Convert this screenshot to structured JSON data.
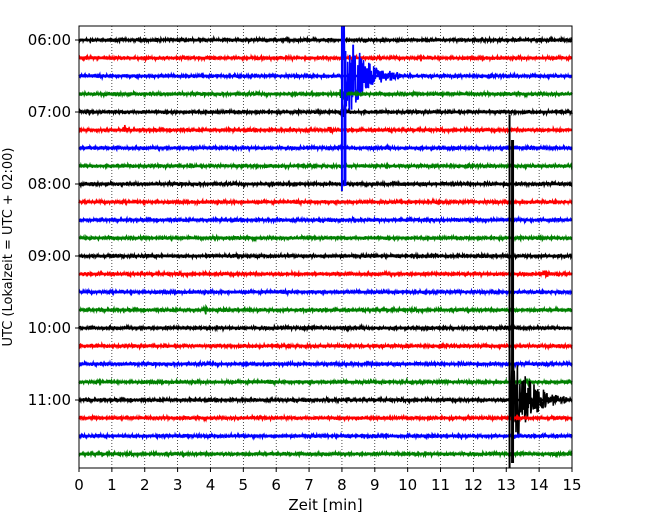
{
  "chart_data": {
    "type": "line",
    "title": "",
    "xlabel": "Zeit  [min]",
    "ylabel": "UTC (Lokalzeit = UTC + 02:00)",
    "xlim": [
      0,
      15
    ],
    "x_ticks": [
      "0",
      "1",
      "2",
      "3",
      "4",
      "5",
      "6",
      "7",
      "8",
      "9",
      "10",
      "11",
      "12",
      "13",
      "14",
      "15"
    ],
    "y_ticks": [
      "06:00",
      "07:00",
      "08:00",
      "09:00",
      "10:00",
      "11:00"
    ],
    "trace_interval_min": 15,
    "traces": [
      {
        "start": "06:00",
        "color": "#000000"
      },
      {
        "start": "06:15",
        "color": "#ff0000"
      },
      {
        "start": "06:30",
        "color": "#0000ff",
        "events": [
          {
            "t": 8.0,
            "amp": "very-large",
            "note": "earthquake"
          }
        ]
      },
      {
        "start": "06:45",
        "color": "#008000",
        "events": [
          {
            "t": 8.0,
            "amp": "medium"
          }
        ]
      },
      {
        "start": "07:00",
        "color": "#000000",
        "events": [
          {
            "t": 8.0,
            "amp": "medium"
          }
        ]
      },
      {
        "start": "07:15",
        "color": "#ff0000",
        "events": [
          {
            "t": 1.4,
            "amp": "small"
          },
          {
            "t": 7.6,
            "amp": "small"
          }
        ]
      },
      {
        "start": "07:30",
        "color": "#0000ff"
      },
      {
        "start": "07:45",
        "color": "#008000"
      },
      {
        "start": "08:00",
        "color": "#000000"
      },
      {
        "start": "08:15",
        "color": "#ff0000"
      },
      {
        "start": "08:30",
        "color": "#0000ff"
      },
      {
        "start": "08:45",
        "color": "#008000"
      },
      {
        "start": "09:00",
        "color": "#000000"
      },
      {
        "start": "09:15",
        "color": "#ff0000",
        "events": [
          {
            "t": 14.2,
            "amp": "small"
          }
        ]
      },
      {
        "start": "09:30",
        "color": "#0000ff"
      },
      {
        "start": "09:45",
        "color": "#008000",
        "events": [
          {
            "t": 3.85,
            "amp": "small"
          }
        ]
      },
      {
        "start": "10:00",
        "color": "#000000"
      },
      {
        "start": "10:15",
        "color": "#ff0000"
      },
      {
        "start": "10:30",
        "color": "#0000ff"
      },
      {
        "start": "10:45",
        "color": "#008000"
      },
      {
        "start": "11:00",
        "color": "#000000",
        "events": [
          {
            "t": 13.1,
            "amp": "very-large",
            "note": "earthquake"
          },
          {
            "t": 8.2,
            "amp": "small"
          }
        ]
      },
      {
        "start": "11:15",
        "color": "#ff0000"
      },
      {
        "start": "11:30",
        "color": "#0000ff"
      },
      {
        "start": "11:45",
        "color": "#008000"
      }
    ],
    "grid": "vertical-dotted",
    "legend": "none"
  }
}
